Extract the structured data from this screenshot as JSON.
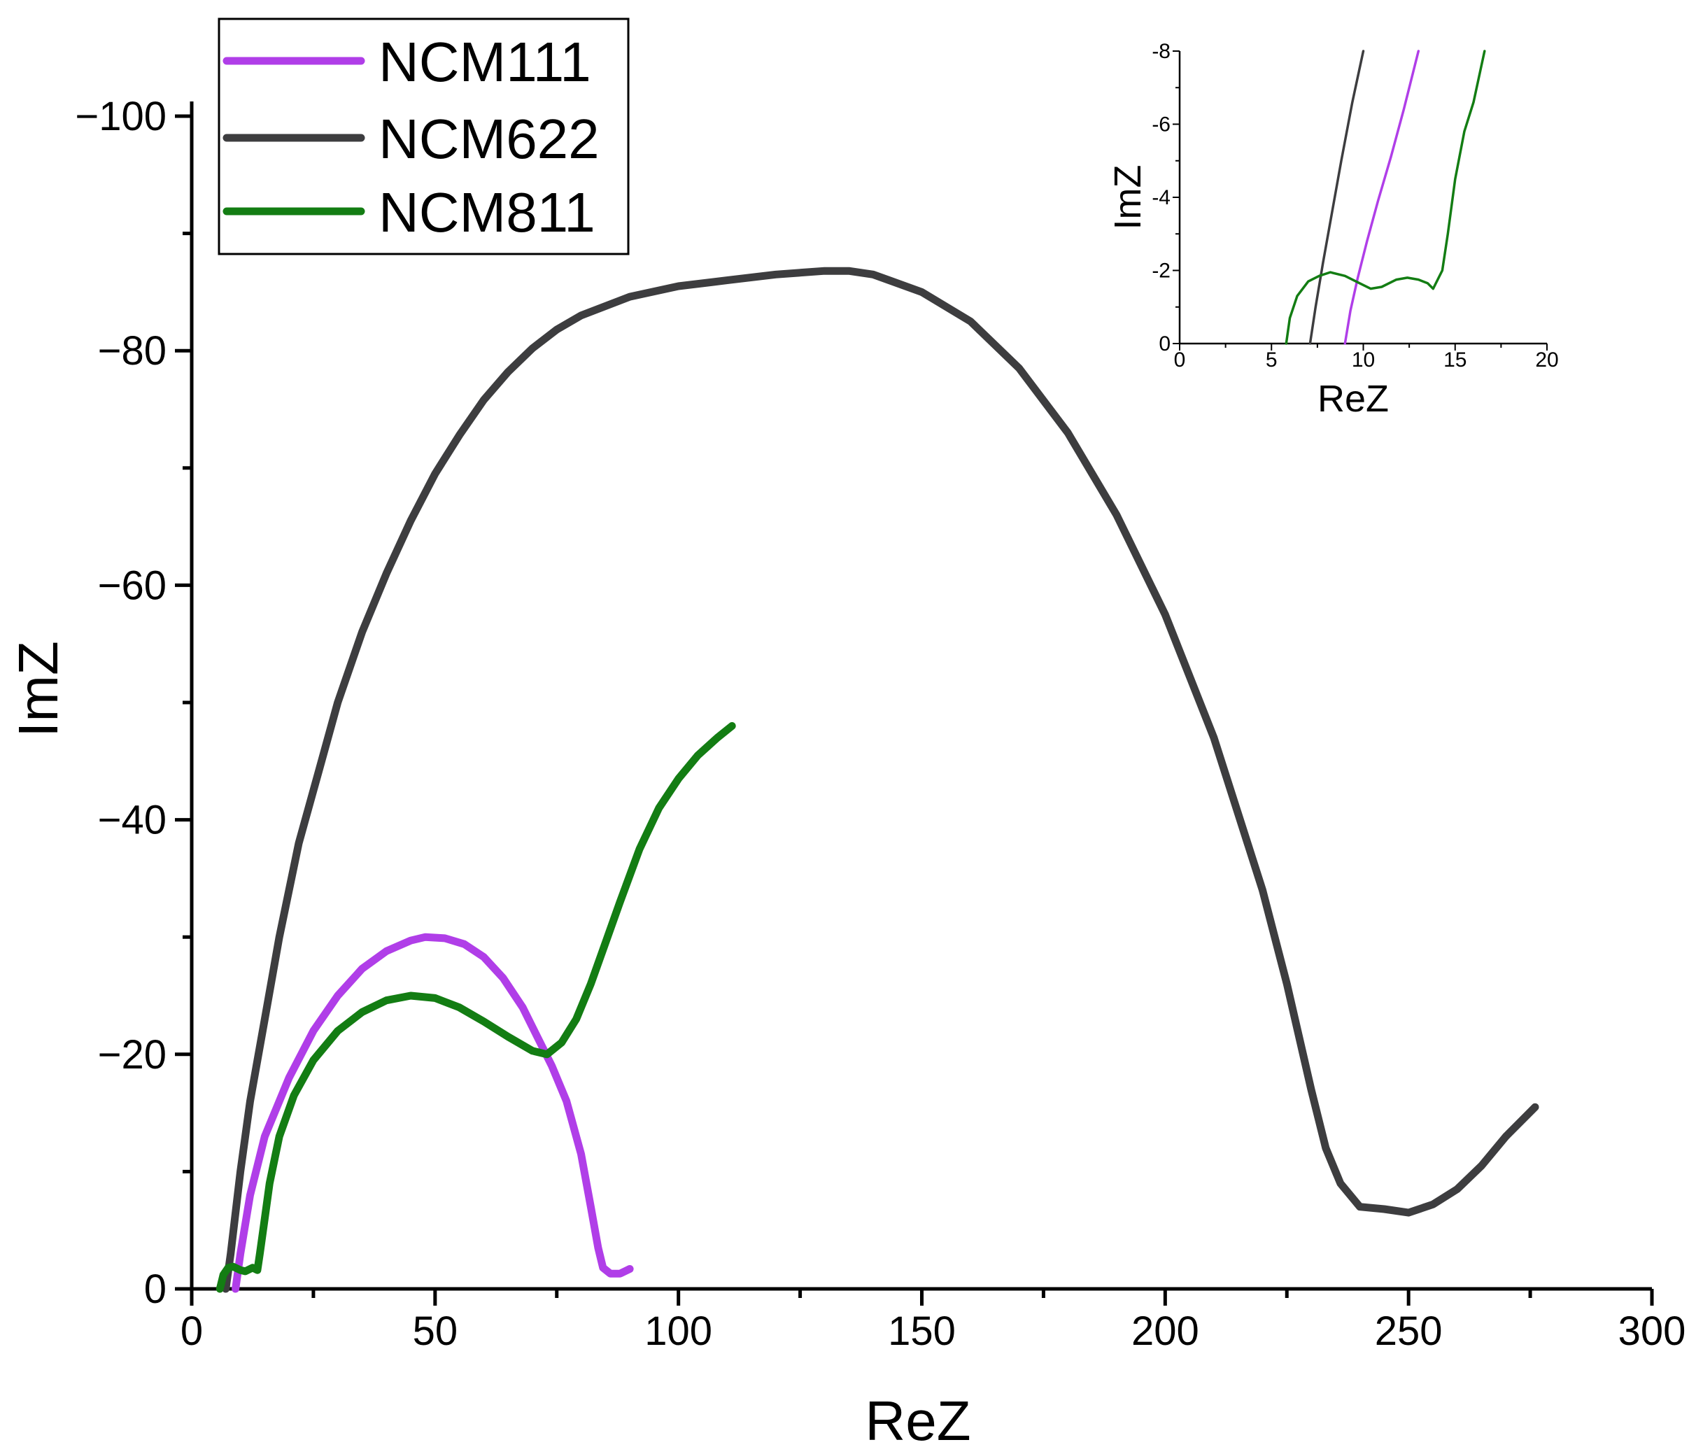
{
  "chart_data": [
    {
      "type": "line",
      "title": "",
      "xlabel": "ReZ",
      "ylabel": "ImZ",
      "xlim": [
        0,
        300
      ],
      "ylim": [
        0,
        -100
      ],
      "x_ticks": [
        0,
        50,
        100,
        150,
        200,
        250,
        300
      ],
      "y_ticks": [
        0,
        -20,
        -40,
        -60,
        -80,
        -100
      ],
      "x_tick_labels": [
        "0",
        "50",
        "100",
        "150",
        "200",
        "250",
        "300"
      ],
      "y_tick_labels": [
        "0",
        "−20",
        "−40",
        "−60",
        "−80",
        "−100"
      ],
      "legend_position": "top-left",
      "legend": [
        "NCM111",
        "NCM622",
        "NCM811"
      ],
      "series": [
        {
          "name": "NCM111",
          "color": "#b03ee8",
          "points": [
            [
              9,
              0
            ],
            [
              10,
              -3
            ],
            [
              12,
              -8
            ],
            [
              15,
              -13
            ],
            [
              20,
              -18
            ],
            [
              25,
              -22
            ],
            [
              30,
              -25
            ],
            [
              35,
              -27.3
            ],
            [
              40,
              -28.8
            ],
            [
              45,
              -29.7
            ],
            [
              48,
              -30
            ],
            [
              52,
              -29.9
            ],
            [
              56,
              -29.4
            ],
            [
              60,
              -28.3
            ],
            [
              64,
              -26.5
            ],
            [
              68,
              -24
            ],
            [
              71,
              -21.5
            ],
            [
              74,
              -19
            ],
            [
              77,
              -16
            ],
            [
              80,
              -11.5
            ],
            [
              82,
              -7
            ],
            [
              83.5,
              -3.5
            ],
            [
              84.5,
              -1.8
            ],
            [
              86,
              -1.3
            ],
            [
              88,
              -1.3
            ],
            [
              90,
              -1.7
            ]
          ]
        },
        {
          "name": "NCM622",
          "color": "#3d3d3f",
          "points": [
            [
              7,
              0
            ],
            [
              8,
              -3
            ],
            [
              10,
              -10
            ],
            [
              12,
              -16
            ],
            [
              15,
              -23
            ],
            [
              18,
              -30
            ],
            [
              22,
              -38
            ],
            [
              26,
              -44
            ],
            [
              30,
              -50
            ],
            [
              35,
              -56
            ],
            [
              40,
              -61
            ],
            [
              45,
              -65.5
            ],
            [
              50,
              -69.5
            ],
            [
              55,
              -72.8
            ],
            [
              60,
              -75.8
            ],
            [
              65,
              -78.2
            ],
            [
              70,
              -80.2
            ],
            [
              75,
              -81.8
            ],
            [
              80,
              -83
            ],
            [
              90,
              -84.6
            ],
            [
              100,
              -85.5
            ],
            [
              110,
              -86
            ],
            [
              120,
              -86.5
            ],
            [
              130,
              -86.8
            ],
            [
              135,
              -86.8
            ],
            [
              140,
              -86.5
            ],
            [
              150,
              -85
            ],
            [
              160,
              -82.5
            ],
            [
              170,
              -78.5
            ],
            [
              180,
              -73
            ],
            [
              190,
              -66
            ],
            [
              200,
              -57.5
            ],
            [
              210,
              -47
            ],
            [
              220,
              -34
            ],
            [
              225,
              -26
            ],
            [
              230,
              -17
            ],
            [
              233,
              -12
            ],
            [
              236,
              -9
            ],
            [
              240,
              -7
            ],
            [
              245,
              -6.8
            ],
            [
              250,
              -6.5
            ],
            [
              255,
              -7.2
            ],
            [
              260,
              -8.5
            ],
            [
              265,
              -10.5
            ],
            [
              270,
              -13
            ],
            [
              276,
              -15.5
            ]
          ]
        },
        {
          "name": "NCM811",
          "color": "#137d13",
          "points": [
            [
              5.8,
              0
            ],
            [
              6.5,
              -1.2
            ],
            [
              7.5,
              -1.8
            ],
            [
              8.5,
              -1.9
            ],
            [
              10,
              -1.6
            ],
            [
              11,
              -1.5
            ],
            [
              12.5,
              -1.8
            ],
            [
              13.5,
              -1.6
            ],
            [
              14,
              -3
            ],
            [
              15,
              -6
            ],
            [
              16,
              -9
            ],
            [
              18,
              -13
            ],
            [
              21,
              -16.5
            ],
            [
              25,
              -19.5
            ],
            [
              30,
              -22
            ],
            [
              35,
              -23.6
            ],
            [
              40,
              -24.6
            ],
            [
              45,
              -25
            ],
            [
              50,
              -24.8
            ],
            [
              55,
              -24
            ],
            [
              60,
              -22.8
            ],
            [
              65,
              -21.5
            ],
            [
              70,
              -20.3
            ],
            [
              73,
              -20
            ],
            [
              76,
              -21
            ],
            [
              79,
              -23
            ],
            [
              82,
              -26
            ],
            [
              85,
              -29.5
            ],
            [
              88,
              -33
            ],
            [
              92,
              -37.5
            ],
            [
              96,
              -41
            ],
            [
              100,
              -43.5
            ],
            [
              104,
              -45.5
            ],
            [
              108,
              -47
            ],
            [
              111,
              -48
            ]
          ]
        }
      ]
    },
    {
      "type": "line",
      "title": "",
      "xlabel": "ReZ",
      "ylabel": "ImZ",
      "xlim": [
        0,
        20
      ],
      "ylim": [
        0,
        -8
      ],
      "x_ticks": [
        0,
        5,
        10,
        15,
        20
      ],
      "y_ticks": [
        0,
        -2,
        -4,
        -6,
        -8
      ],
      "x_tick_labels": [
        "0",
        "5",
        "10",
        "15",
        "20"
      ],
      "y_tick_labels": [
        "0",
        "-2",
        "-4",
        "-6",
        "-8"
      ],
      "position": "inset-top-right",
      "series": [
        {
          "name": "NCM111",
          "color": "#b03ee8",
          "points": [
            [
              9,
              0
            ],
            [
              9.3,
              -0.9
            ],
            [
              9.7,
              -1.8
            ],
            [
              10.2,
              -2.8
            ],
            [
              10.8,
              -3.9
            ],
            [
              11.5,
              -5.1
            ],
            [
              12.2,
              -6.4
            ],
            [
              13,
              -8
            ]
          ]
        },
        {
          "name": "NCM622",
          "color": "#3d3d3f",
          "points": [
            [
              7.1,
              0
            ],
            [
              7.4,
              -1
            ],
            [
              7.8,
              -2.2
            ],
            [
              8.3,
              -3.6
            ],
            [
              8.8,
              -5
            ],
            [
              9.4,
              -6.6
            ],
            [
              10,
              -8
            ]
          ]
        },
        {
          "name": "NCM811",
          "color": "#137d13",
          "points": [
            [
              5.8,
              0
            ],
            [
              6,
              -0.7
            ],
            [
              6.4,
              -1.3
            ],
            [
              7,
              -1.7
            ],
            [
              7.6,
              -1.85
            ],
            [
              8.2,
              -1.95
            ],
            [
              9,
              -1.85
            ],
            [
              9.8,
              -1.65
            ],
            [
              10.4,
              -1.5
            ],
            [
              11,
              -1.55
            ],
            [
              11.8,
              -1.75
            ],
            [
              12.4,
              -1.8
            ],
            [
              13,
              -1.75
            ],
            [
              13.5,
              -1.65
            ],
            [
              13.8,
              -1.5
            ],
            [
              14.3,
              -2
            ],
            [
              14.6,
              -3
            ],
            [
              15,
              -4.5
            ],
            [
              15.5,
              -5.8
            ],
            [
              16,
              -6.6
            ],
            [
              16.6,
              -8
            ]
          ]
        }
      ]
    }
  ]
}
